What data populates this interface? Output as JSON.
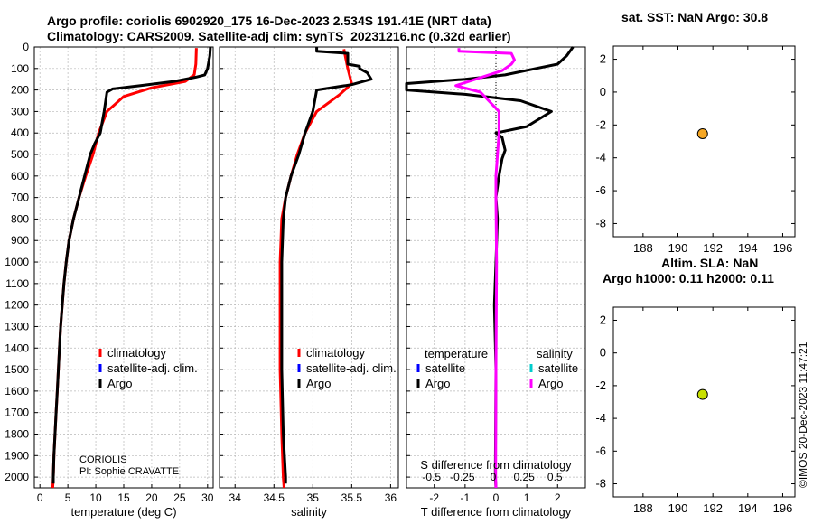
{
  "header": {
    "line1": "Argo profile: coriolis 6902920_175 16-Dec-2023 2.534S 191.41E (NRT data)",
    "line2": "Climatology: CARS2009. Satellite-adj clim: synTS_20231216.nc (0.32d earlier)"
  },
  "side": {
    "sst_title": "sat. SST: NaN Argo: 30.8",
    "sla_title_1": "Altim. SLA: NaN",
    "sla_title_2": "Argo h1000: 0.11 h2000: 0.11"
  },
  "stamp": "©IMOS 20-Dec-2023 11:47:21",
  "colors": {
    "climatology": "#ff0000",
    "satellite": "#0000ff",
    "argo": "#000000",
    "salinity_diff": "#ff00ff",
    "satellite_sal": "#00cccc",
    "sst_marker": "#f5a623",
    "sla_marker": "#c8e000"
  },
  "chart_data": [
    {
      "id": "temperature",
      "type": "line",
      "xlabel": "temperature (deg C)",
      "ylabel": "",
      "xlim": [
        -1,
        31
      ],
      "ylim": [
        2050,
        0
      ],
      "xticks": [
        "0",
        "5",
        "10",
        "15",
        "20",
        "25",
        "30"
      ],
      "yticks": [
        "0",
        "100",
        "200",
        "300",
        "400",
        "500",
        "600",
        "700",
        "800",
        "900",
        "1000",
        "1100",
        "1200",
        "1300",
        "1400",
        "1500",
        "1600",
        "1700",
        "1800",
        "1900",
        "2000"
      ],
      "grid": true,
      "legend": [
        "climatology",
        "satellite-adj. clim.",
        "Argo"
      ],
      "note_1": "CORIOLIS",
      "note_2": "PI: Sophie CRAVATTE",
      "series": [
        {
          "name": "climatology",
          "color": "#ff0000",
          "points": [
            [
              28,
              5
            ],
            [
              27.9,
              80
            ],
            [
              27.6,
              130
            ],
            [
              26,
              160
            ],
            [
              20,
              190
            ],
            [
              15,
              230
            ],
            [
              12,
              300
            ],
            [
              10.5,
              400
            ],
            [
              9.5,
              500
            ],
            [
              8.2,
              600
            ],
            [
              7,
              700
            ],
            [
              6,
              800
            ],
            [
              5.2,
              900
            ],
            [
              4.7,
              1000
            ],
            [
              4.3,
              1100
            ],
            [
              4,
              1200
            ],
            [
              3.7,
              1300
            ],
            [
              3.5,
              1400
            ],
            [
              3.3,
              1500
            ],
            [
              3.1,
              1600
            ],
            [
              2.9,
              1700
            ],
            [
              2.7,
              1800
            ],
            [
              2.5,
              1900
            ],
            [
              2.4,
              2000
            ],
            [
              2.3,
              2050
            ]
          ]
        },
        {
          "name": "Argo",
          "color": "#000000",
          "points": [
            [
              30.5,
              0
            ],
            [
              30.4,
              40
            ],
            [
              30,
              100
            ],
            [
              29.5,
              130
            ],
            [
              28,
              140
            ],
            [
              24,
              160
            ],
            [
              18,
              180
            ],
            [
              13,
              195
            ],
            [
              12,
              210
            ],
            [
              11.5,
              300
            ],
            [
              10.8,
              400
            ],
            [
              9.8,
              450
            ],
            [
              9,
              500
            ],
            [
              8,
              600
            ],
            [
              7,
              700
            ],
            [
              6,
              800
            ],
            [
              5.2,
              900
            ],
            [
              4.7,
              1000
            ],
            [
              4.3,
              1100
            ],
            [
              4,
              1200
            ],
            [
              3.7,
              1300
            ],
            [
              3.5,
              1400
            ],
            [
              3.3,
              1500
            ],
            [
              3.1,
              1600
            ],
            [
              2.9,
              1700
            ],
            [
              2.7,
              1800
            ],
            [
              2.5,
              1900
            ],
            [
              2.4,
              2000
            ],
            [
              2.4,
              2030
            ]
          ]
        }
      ]
    },
    {
      "id": "salinity",
      "type": "line",
      "xlabel": "salinity",
      "ylabel": "",
      "xlim": [
        33.8,
        36.1
      ],
      "ylim": [
        2050,
        0
      ],
      "xticks": [
        "34",
        "34.5",
        "35",
        "35.5",
        "36"
      ],
      "grid": true,
      "legend": [
        "climatology",
        "satellite-adj. clim.",
        "Argo"
      ],
      "series": [
        {
          "name": "climatology",
          "color": "#ff0000",
          "points": [
            [
              35.4,
              10
            ],
            [
              35.45,
              100
            ],
            [
              35.5,
              170
            ],
            [
              35.35,
              220
            ],
            [
              35.05,
              300
            ],
            [
              34.9,
              400
            ],
            [
              34.8,
              500
            ],
            [
              34.72,
              600
            ],
            [
              34.65,
              700
            ],
            [
              34.6,
              800
            ],
            [
              34.58,
              1000
            ],
            [
              34.58,
              1500
            ],
            [
              34.6,
              1800
            ],
            [
              34.62,
              2000
            ],
            [
              34.63,
              2050
            ]
          ]
        },
        {
          "name": "Argo",
          "color": "#000000",
          "points": [
            [
              35.05,
              0
            ],
            [
              35.05,
              20
            ],
            [
              35.45,
              30
            ],
            [
              35.45,
              80
            ],
            [
              35.6,
              90
            ],
            [
              35.6,
              100
            ],
            [
              35.7,
              120
            ],
            [
              35.75,
              150
            ],
            [
              35.5,
              175
            ],
            [
              35.05,
              200
            ],
            [
              35,
              300
            ],
            [
              34.9,
              400
            ],
            [
              34.82,
              500
            ],
            [
              34.72,
              600
            ],
            [
              34.65,
              700
            ],
            [
              34.62,
              800
            ],
            [
              34.6,
              1000
            ],
            [
              34.6,
              1500
            ],
            [
              34.62,
              1800
            ],
            [
              34.65,
              2000
            ],
            [
              34.65,
              2030
            ]
          ]
        }
      ]
    },
    {
      "id": "difference",
      "type": "line",
      "xlabel": "T difference from climatology",
      "xlabel_top": "S difference from climatology",
      "ylabel": "",
      "xlim": [
        -2.9,
        2.9
      ],
      "ylim": [
        2050,
        0
      ],
      "xticks": [
        "-2",
        "-1",
        "0",
        "1",
        "2"
      ],
      "xticks_top": [
        "-0.5",
        "-0.25",
        "0",
        "0.25",
        "0.5"
      ],
      "grid": true,
      "legend_title_t": "temperature",
      "legend_title_s": "salinity",
      "legend": [
        "satellite",
        "Argo",
        "satellite",
        "Argo"
      ],
      "series": [
        {
          "name": "T Argo",
          "color": "#000000",
          "points": [
            [
              2.5,
              0
            ],
            [
              2.3,
              40
            ],
            [
              2,
              80
            ],
            [
              1.3,
              100
            ],
            [
              0.3,
              130
            ],
            [
              -1,
              150
            ],
            [
              -2.9,
              170
            ],
            [
              -3,
              200
            ],
            [
              -1,
              220
            ],
            [
              0.8,
              250
            ],
            [
              1.8,
              300
            ],
            [
              1,
              370
            ],
            [
              0,
              400
            ],
            [
              0.2,
              420
            ],
            [
              0.3,
              480
            ],
            [
              0.2,
              520
            ],
            [
              0.1,
              600
            ],
            [
              0,
              700
            ],
            [
              0.05,
              800
            ],
            [
              0,
              1000
            ],
            [
              -0.05,
              1200
            ],
            [
              0,
              1500
            ],
            [
              -0.02,
              2000
            ],
            [
              0,
              2050
            ]
          ]
        },
        {
          "name": "S Argo",
          "color": "#ff00ff",
          "points": [
            [
              -1.2,
              5
            ],
            [
              -1.2,
              20
            ],
            [
              0.5,
              30
            ],
            [
              0.6,
              60
            ],
            [
              0.5,
              80
            ],
            [
              0.2,
              110
            ],
            [
              -1.3,
              180
            ],
            [
              -0.5,
              210
            ],
            [
              0.1,
              300
            ],
            [
              0.1,
              400
            ],
            [
              0.05,
              500
            ],
            [
              0,
              600
            ],
            [
              0,
              700
            ],
            [
              0.02,
              1000
            ],
            [
              0,
              1500
            ],
            [
              -0.01,
              2000
            ],
            [
              0,
              2050
            ]
          ]
        }
      ]
    },
    {
      "id": "sst_map",
      "type": "scatter",
      "title": "sat. SST: NaN Argo: 30.8",
      "xlim": [
        186.3,
        196.7
      ],
      "ylim": [
        -8.8,
        2.8
      ],
      "xticks": [
        "188",
        "190",
        "192",
        "194",
        "196"
      ],
      "yticks": [
        "2",
        "0",
        "-2",
        "-4",
        "-6",
        "-8"
      ],
      "points": [
        {
          "x": 191.41,
          "y": -2.534,
          "color": "#f5a623"
        }
      ]
    },
    {
      "id": "sla_map",
      "type": "scatter",
      "title": "Altim. SLA: NaN",
      "xlim": [
        186.3,
        196.7
      ],
      "ylim": [
        -8.8,
        2.8
      ],
      "xticks": [
        "188",
        "190",
        "192",
        "194",
        "196"
      ],
      "yticks": [
        "2",
        "0",
        "-2",
        "-4",
        "-6",
        "-8"
      ],
      "points": [
        {
          "x": 191.41,
          "y": -2.534,
          "color": "#c8e000"
        }
      ]
    }
  ]
}
